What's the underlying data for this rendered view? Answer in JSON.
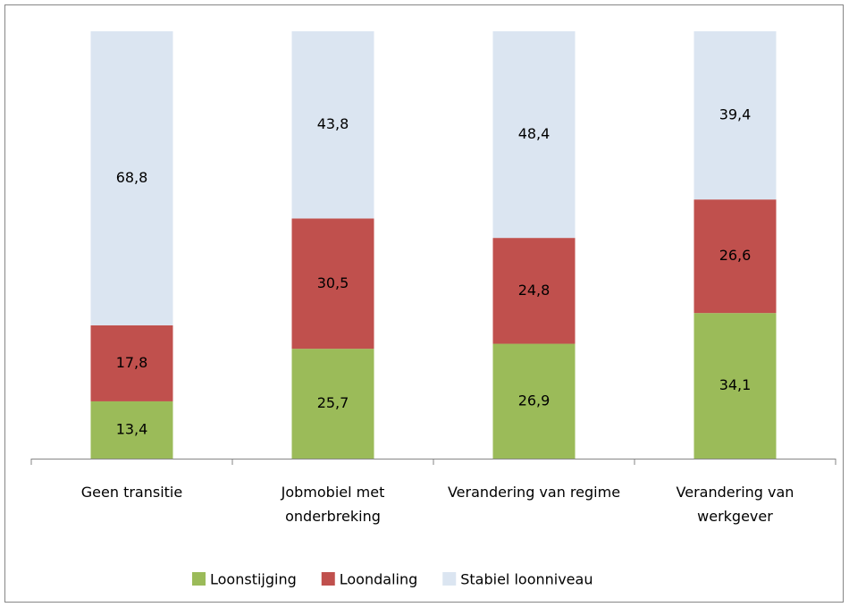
{
  "chart_data": {
    "type": "stacked_bar",
    "categories": [
      "Geen transitie",
      "Jobmobiel met onderbreking",
      "Verandering van regime",
      "Verandering van werkgever"
    ],
    "series": [
      {
        "name": "Loonstijging",
        "color": "#9bbb59",
        "values": [
          13.4,
          25.7,
          26.9,
          34.1
        ],
        "value_labels": [
          "13,4",
          "25,7",
          "26,9",
          "34,1"
        ]
      },
      {
        "name": "Loondaling",
        "color": "#c0504d",
        "values": [
          17.8,
          30.5,
          24.8,
          26.6
        ],
        "value_labels": [
          "17,8",
          "30,5",
          "24,8",
          "26,6"
        ]
      },
      {
        "name": "Stabiel loonniveau",
        "color": "#dbe5f1",
        "values": [
          68.8,
          43.8,
          48.4,
          39.4
        ],
        "value_labels": [
          "68,8",
          "43,8",
          "48,4",
          "39,4"
        ]
      }
    ],
    "legend": "bottom"
  }
}
